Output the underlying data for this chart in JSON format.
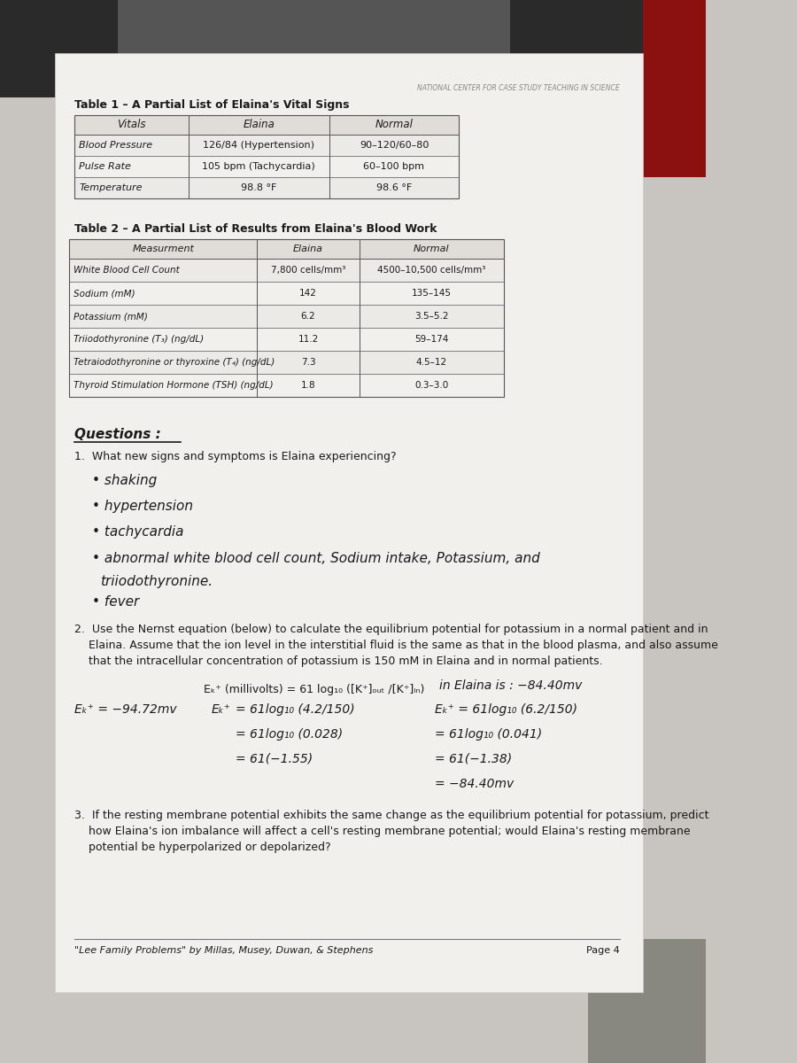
{
  "header_text": "NATIONAL CENTER FOR CASE STUDY TEACHING IN SCIENCE",
  "footer_text": "\"Lee Family Problems\" by Millas, Musey, Duwan, & Stephens",
  "page_num": "Page 4",
  "table1_title": "Table 1 – A Partial List of Elaina's Vital Signs",
  "table1_headers": [
    "Vitals",
    "Elaina",
    "Normal"
  ],
  "table1_rows": [
    [
      "Blood Pressure",
      "126/84 (Hypertension)",
      "90–120/60–80"
    ],
    [
      "Pulse Rate",
      "105 bpm (Tachycardia)",
      "60–100 bpm"
    ],
    [
      "Temperature",
      "98.8 °F",
      "98.6 °F"
    ]
  ],
  "table2_title": "Table 2 – A Partial List of Results from Elaina's Blood Work",
  "table2_headers": [
    "Measurment",
    "Elaina",
    "Normal"
  ],
  "table2_rows": [
    [
      "White Blood Cell Count",
      "7,800 cells/mm³",
      "4500–10,500 cells/mm³"
    ],
    [
      "Sodium (mM)",
      "142",
      "135–145"
    ],
    [
      "Potassium (mM)",
      "6.2",
      "3.5–5.2"
    ],
    [
      "Triiodothyronine (T₃) (ng/dL)",
      "11.2",
      "59–174"
    ],
    [
      "Tetraiodothyronine or thyroxine (T₄) (ng/dL)",
      "7.3",
      "4.5–12"
    ],
    [
      "Thyroid Stimulation Hormone (TSH) (ng/dL)",
      "1.8",
      "0.3–3.0"
    ]
  ],
  "bg_top_color": "#3a3a3a",
  "bg_bottom_color": "#c8c5c0",
  "paper_color": "#f2f0ec",
  "table_header_bg": "#e0ddd8",
  "border_color": "#666666",
  "text_color": "#1a1a1a",
  "handwriting_color": "#1a1a1a",
  "header_color": "#888880"
}
